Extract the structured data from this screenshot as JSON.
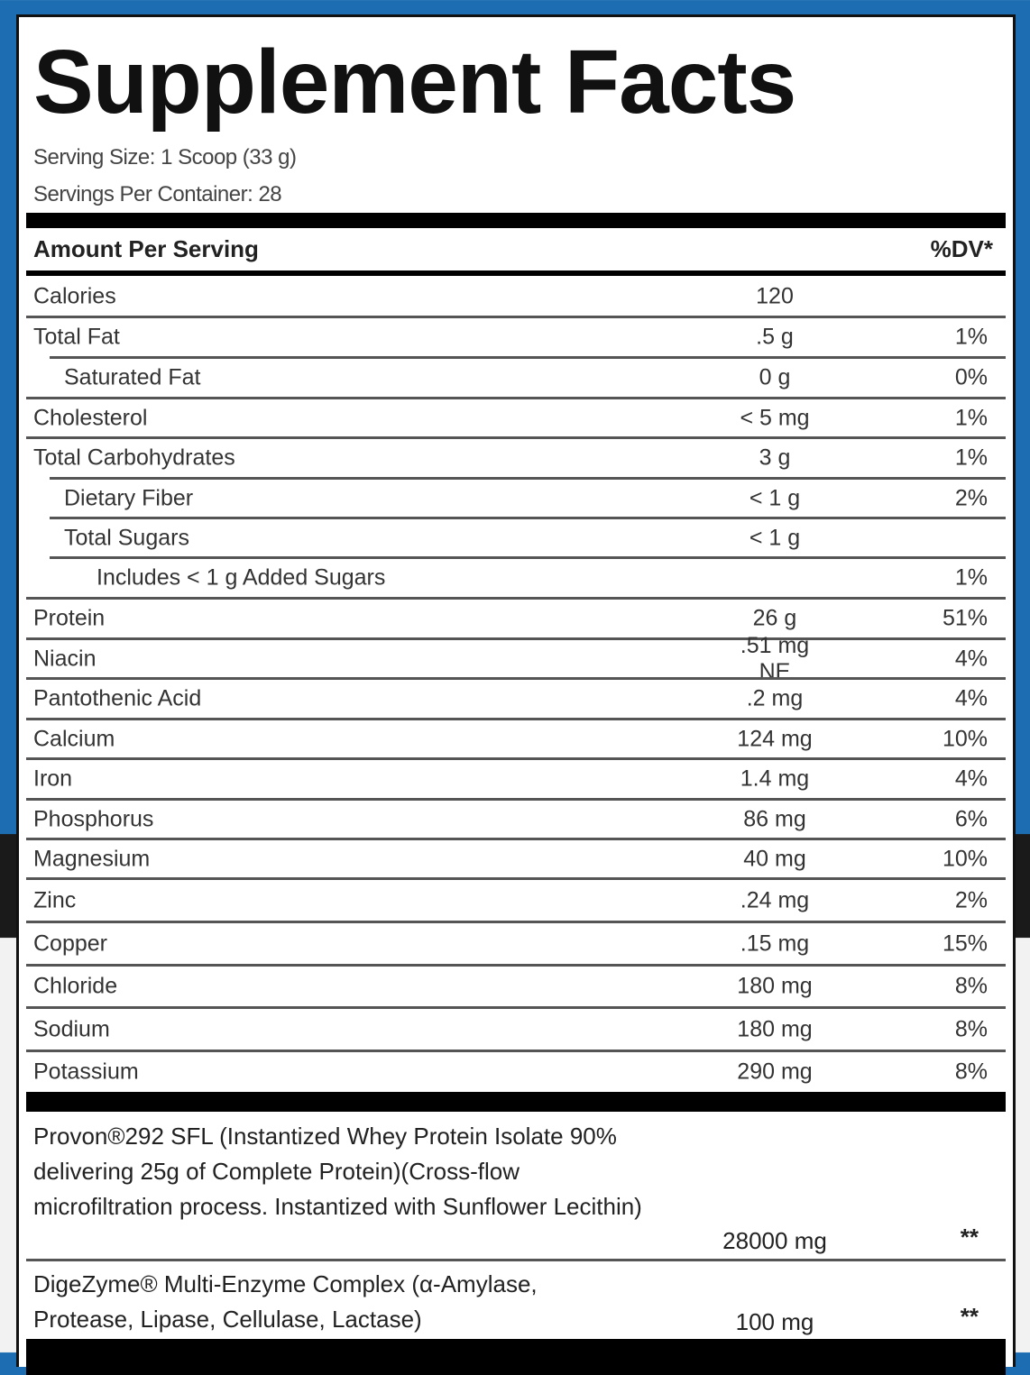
{
  "title": "Supplement Facts",
  "serving_size": "Serving Size: 1 Scoop (33 g)",
  "servings_per_container": "Servings Per Container: 28",
  "header": {
    "amount": "Amount Per Serving",
    "dv": "%DV*"
  },
  "rows": [
    {
      "name": "Calories",
      "amount": "120",
      "dv": "",
      "indent": 0
    },
    {
      "name": "Total Fat",
      "amount": ".5 g",
      "dv": "1%",
      "indent": 0
    },
    {
      "name": "Saturated Fat",
      "amount": "0 g",
      "dv": "0%",
      "indent": 1
    },
    {
      "name": "Cholesterol",
      "amount": "< 5 mg",
      "dv": "1%",
      "indent": 0
    },
    {
      "name": "Total Carbohydrates",
      "amount": "3 g",
      "dv": "1%",
      "indent": 0
    },
    {
      "name": "Dietary Fiber",
      "amount": "< 1 g",
      "dv": "2%",
      "indent": 1
    },
    {
      "name": "Total Sugars",
      "amount": "< 1 g",
      "dv": "",
      "indent": 1
    },
    {
      "name": "Includes < 1 g Added Sugars",
      "amount": "",
      "dv": "1%",
      "indent": 2
    },
    {
      "name": "Protein",
      "amount": "26 g",
      "dv": "51%",
      "indent": 0
    },
    {
      "name": "Niacin",
      "amount": ".51 mg NE",
      "dv": "4%",
      "indent": 0
    },
    {
      "name": "Pantothenic Acid",
      "amount": ".2 mg",
      "dv": "4%",
      "indent": 0
    },
    {
      "name": "Calcium",
      "amount": "124 mg",
      "dv": "10%",
      "indent": 0
    },
    {
      "name": "Iron",
      "amount": "1.4 mg",
      "dv": "4%",
      "indent": 0
    },
    {
      "name": "Phosphorus",
      "amount": "86 mg",
      "dv": "6%",
      "indent": 0
    },
    {
      "name": "Magnesium",
      "amount": "40 mg",
      "dv": "10%",
      "indent": 0
    },
    {
      "name": "Zinc",
      "amount": ".24 mg",
      "dv": "2%",
      "indent": 0
    },
    {
      "name": "Copper",
      "amount": ".15 mg",
      "dv": "15%",
      "indent": 0
    },
    {
      "name": "Chloride",
      "amount": "180 mg",
      "dv": "8%",
      "indent": 0
    },
    {
      "name": "Sodium",
      "amount": "180 mg",
      "dv": "8%",
      "indent": 0
    },
    {
      "name": "Potassium",
      "amount": "290 mg",
      "dv": "8%",
      "indent": 0
    }
  ],
  "blends": [
    {
      "name": "Provon®292 SFL (Instantized Whey Protein Isolate 90% delivering 25g of Complete Protein)(Cross-flow microfiltration process. Instantized with Sunflower Lecithin)",
      "amount": "28000 mg",
      "dv": "**"
    },
    {
      "name": "DigeZyme® Multi-Enzyme Complex (α-Amylase, Protease, Lipase, Cellulase, Lactase)",
      "amount": "100 mg",
      "dv": "**"
    }
  ],
  "colors": {
    "background_blue": "#1d6db3",
    "label": "#ffffff",
    "text": "#222222"
  }
}
